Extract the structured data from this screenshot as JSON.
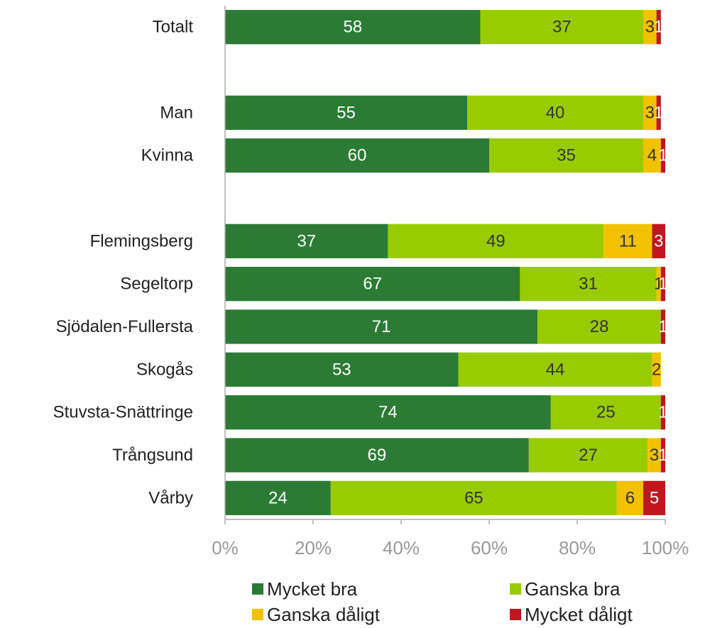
{
  "chart_data": {
    "type": "stacked-bar",
    "orientation": "horizontal",
    "categories": [
      "Totalt",
      null,
      "Man",
      "Kvinna",
      null,
      "Flemingsberg",
      "Segeltorp",
      "Sjödalen-Fullersta",
      "Skogås",
      "Stuvsta-Snättringe",
      "Trångsund",
      "Vårby"
    ],
    "series": [
      {
        "name": "Mycket bra",
        "color": "#2b7b34",
        "label_color": "#ffffff",
        "values": [
          58,
          null,
          55,
          60,
          null,
          37,
          67,
          71,
          53,
          74,
          69,
          24
        ]
      },
      {
        "name": "Ganska bra",
        "color": "#99cc00",
        "label_color": "#333333",
        "values": [
          37,
          null,
          40,
          35,
          null,
          49,
          31,
          28,
          44,
          25,
          27,
          65
        ]
      },
      {
        "name": "Ganska dåligt",
        "color": "#f2c200",
        "label_color": "#333333",
        "values": [
          3,
          null,
          3,
          4,
          null,
          11,
          1,
          0,
          2,
          0,
          3,
          6
        ]
      },
      {
        "name": "Mycket dåligt",
        "color": "#c0161c",
        "label_color": "#ffffff",
        "values": [
          1,
          null,
          1,
          1,
          null,
          3,
          1,
          1,
          0,
          1,
          1,
          5
        ]
      }
    ],
    "xlim": [
      0,
      100
    ],
    "xticks": [
      {
        "value": 0,
        "label": "0%"
      },
      {
        "value": 20,
        "label": "20%"
      },
      {
        "value": 40,
        "label": "40%"
      },
      {
        "value": 60,
        "label": "60%"
      },
      {
        "value": 80,
        "label": "80%"
      },
      {
        "value": 100,
        "label": "100%"
      }
    ],
    "legend": "bottom"
  }
}
